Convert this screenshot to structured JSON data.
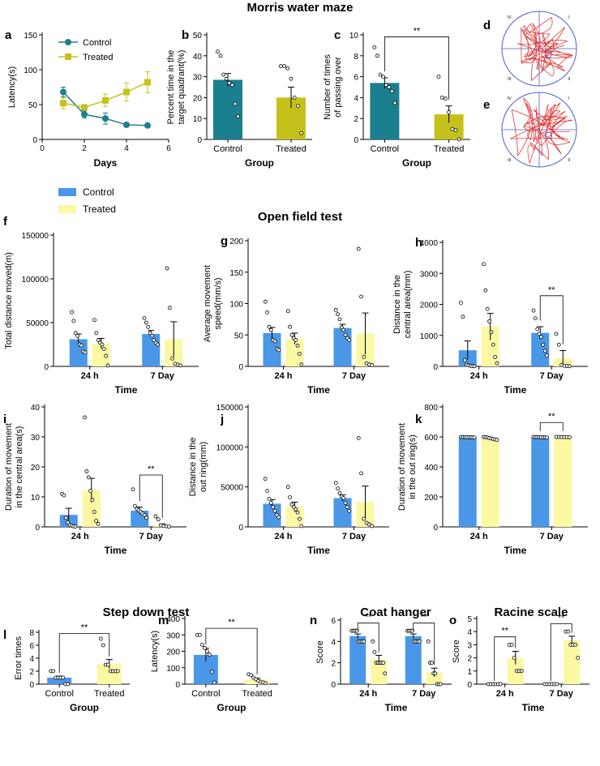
{
  "section_titles": {
    "mwm": "Morris water maze",
    "oft": "Open field test",
    "sdt": "Step down test",
    "coat": "Coat hanger",
    "racine": "Racine scale"
  },
  "legend": {
    "control": "Control",
    "treated": "Treated"
  },
  "colors": {
    "teal": "#1a7f8e",
    "olive": "#c4c21a",
    "blue": "#4a97e8",
    "yellow": "#fbf8a2",
    "track": "#e03a3a",
    "pool": "#4b5fc8"
  },
  "sig": "**",
  "tracks": {
    "d": {
      "label": "d",
      "quadrants": [
        "IV",
        "I",
        "III",
        "II"
      ]
    },
    "e": {
      "label": "e",
      "quadrants": [
        "IV",
        "I",
        "III",
        "II"
      ]
    }
  },
  "chart_data": [
    {
      "id": "a",
      "label": "a",
      "type": "line",
      "xlabel": "Days",
      "ylabel": "Latency(s)",
      "xlim": [
        0,
        6
      ],
      "ylim": [
        0,
        150
      ],
      "xticks": [
        0,
        2,
        4,
        6
      ],
      "yticks": [
        0,
        50,
        100,
        150
      ],
      "series": [
        {
          "name": "Control",
          "x": [
            1,
            2,
            3,
            4,
            5
          ],
          "values": [
            68,
            36,
            30,
            21,
            20
          ],
          "err": [
            7,
            5,
            8,
            3,
            3
          ]
        },
        {
          "name": "Treated",
          "x": [
            1,
            2,
            3,
            4,
            5
          ],
          "values": [
            52,
            46,
            56,
            68,
            82
          ],
          "err": [
            8,
            3,
            9,
            13,
            15
          ]
        }
      ]
    },
    {
      "id": "b",
      "label": "b",
      "type": "bar",
      "xlabel": "Group",
      "ylabel": [
        "Percent time in the",
        "target quadrant(%)"
      ],
      "ylim": [
        0,
        50
      ],
      "yticks": [
        0,
        10,
        20,
        30,
        40,
        50
      ],
      "categories": [
        "Control",
        "Treated"
      ],
      "values": [
        28.5,
        20
      ],
      "err": [
        3,
        5
      ],
      "points": [
        [
          42,
          40,
          31,
          29,
          27,
          26,
          17,
          11
        ],
        [
          35,
          35,
          34,
          29,
          20,
          16,
          3
        ]
      ]
    },
    {
      "id": "c",
      "label": "c",
      "type": "bar",
      "xlabel": "Group",
      "ylabel": [
        "Number of times",
        "of passing over"
      ],
      "ylim": [
        0,
        10
      ],
      "yticks": [
        0,
        2,
        4,
        6,
        8,
        10
      ],
      "categories": [
        "Control",
        "Treated"
      ],
      "values": [
        5.4,
        2.4
      ],
      "err": [
        0.5,
        0.8
      ],
      "points": [
        [
          8.8,
          8,
          6.2,
          6,
          5.2,
          5,
          4.6,
          3.5
        ],
        [
          6,
          4,
          3.9,
          2.6,
          1,
          0.9,
          0
        ]
      ],
      "sig": "**"
    },
    {
      "id": "f",
      "label": "f",
      "type": "bar",
      "xlabel": "Time",
      "ylabel": [
        "Total distance moved(m)"
      ],
      "ylim": [
        0,
        150000
      ],
      "yticks": [
        0,
        50000,
        100000,
        150000
      ],
      "categories": [
        "24 h",
        "7 Day"
      ],
      "series": [
        {
          "name": "Control",
          "values": [
            31000,
            37000
          ],
          "err": [
            6000,
            4000
          ],
          "points": [
            [
              62000,
              52000,
              38000,
              35000,
              25000,
              24000,
              17000,
              16000
            ],
            [
              55000,
              50000,
              45000,
              38000,
              35000,
              30000,
              27000,
              25000
            ]
          ]
        },
        {
          "name": "Treated",
          "values": [
            26000,
            31000
          ],
          "err": [
            6000,
            20000
          ],
          "points": [
            [
              53000,
              38000,
              30000,
              27000,
              25000,
              20000,
              12000,
              1000
            ],
            [
              112000,
              67000,
              9000,
              3000,
              2000,
              1000
            ]
          ]
        }
      ]
    },
    {
      "id": "g",
      "label": "g",
      "type": "bar",
      "xlabel": "Time",
      "ylabel": [
        "Average movement",
        "speed(mm/s)"
      ],
      "ylim": [
        0,
        200
      ],
      "yticks": [
        0,
        50,
        100,
        150,
        200
      ],
      "categories": [
        "24 h",
        "7 Day"
      ],
      "series": [
        {
          "name": "Control",
          "values": [
            53,
            61
          ],
          "err": [
            9,
            6
          ],
          "points": [
            [
              103,
              86,
              63,
              58,
              42,
              40,
              28,
              26
            ],
            [
              90,
              83,
              75,
              62,
              58,
              50,
              45,
              42
            ]
          ]
        },
        {
          "name": "Treated",
          "values": [
            44,
            52
          ],
          "err": [
            9,
            33
          ],
          "points": [
            [
              88,
              63,
              50,
              45,
              42,
              33,
              20,
              3
            ],
            [
              187,
              111,
              15,
              5,
              3,
              2
            ]
          ]
        }
      ]
    },
    {
      "id": "h",
      "label": "h",
      "type": "bar",
      "xlabel": "Time",
      "ylabel": [
        "Distance in the",
        "central area(mm)"
      ],
      "ylim": [
        0,
        4000
      ],
      "yticks": [
        0,
        1000,
        2000,
        3000,
        4000
      ],
      "categories": [
        "24 h",
        "7 Day"
      ],
      "series": [
        {
          "name": "Control",
          "values": [
            520,
            1080
          ],
          "err": [
            300,
            200
          ],
          "points": [
            [
              2050,
              1600,
              200,
              50,
              30,
              20,
              10,
              5
            ],
            [
              1800,
              1550,
              1200,
              1050,
              950,
              700,
              500,
              350
            ]
          ]
        },
        {
          "name": "Treated",
          "values": [
            1280,
            250
          ],
          "err": [
            430,
            260
          ],
          "points": [
            [
              3300,
              2450,
              1850,
              1450,
              1100,
              700,
              300,
              100
            ],
            [
              1050,
              700,
              50,
              20,
              10,
              5
            ]
          ]
        }
      ],
      "sig_group": 1
    },
    {
      "id": "i",
      "label": "i",
      "type": "bar",
      "xlabel": "Time",
      "ylabel": [
        "Duration of movement",
        "in the central area(s)"
      ],
      "ylim": [
        0,
        40
      ],
      "yticks": [
        0,
        10,
        20,
        30,
        40
      ],
      "categories": [
        "24 h",
        "7 Day"
      ],
      "series": [
        {
          "name": "Control",
          "values": [
            4,
            5.4
          ],
          "err": [
            2.2,
            1.2
          ],
          "points": [
            [
              11,
              10.5,
              3,
              1.5,
              0.6,
              0.4,
              0.2,
              0.1
            ],
            [
              12.5,
              7,
              6,
              5.5,
              5,
              4.5,
              4,
              3
            ]
          ]
        },
        {
          "name": "Treated",
          "values": [
            12.2,
            0.6
          ],
          "err": [
            4,
            0.4
          ],
          "points": [
            [
              36.5,
              18.5,
              16.5,
              12,
              9,
              5,
              2,
              1
            ],
            [
              3.5,
              2.5,
              0.5,
              0.3,
              0.2,
              0.1
            ]
          ]
        }
      ],
      "sig_group": 1
    },
    {
      "id": "j",
      "label": "j",
      "type": "bar",
      "xlabel": "Time",
      "ylabel": [
        "Distance in the",
        "out ring(mm)"
      ],
      "ylim": [
        0,
        150000
      ],
      "yticks": [
        0,
        50000,
        100000,
        150000
      ],
      "categories": [
        "24 h",
        "7 Day"
      ],
      "series": [
        {
          "name": "Control",
          "values": [
            29000,
            36000
          ],
          "err": [
            5000,
            4000
          ],
          "points": [
            [
              60000,
              45000,
              35000,
              30000,
              25000,
              20000,
              15000,
              12000
            ],
            [
              55000,
              48000,
              42000,
              38000,
              36000,
              30000,
              25000,
              20000
            ]
          ]
        },
        {
          "name": "Treated",
          "values": [
            25000,
            31000
          ],
          "err": [
            6000,
            20000
          ],
          "points": [
            [
              50000,
              37000,
              28000,
              25000,
              22000,
              18000,
              10000,
              1000
            ],
            [
              111000,
              67000,
              10000,
              5000,
              3000,
              1000
            ]
          ]
        }
      ]
    },
    {
      "id": "k",
      "label": "k",
      "type": "bar",
      "xlabel": "Time",
      "ylabel": [
        "Duration of movement",
        "in the out ring(s)"
      ],
      "ylim": [
        0,
        800
      ],
      "yticks": [
        0,
        200,
        400,
        600,
        800
      ],
      "categories": [
        "24 h",
        "7 Day"
      ],
      "series": [
        {
          "name": "Control",
          "values": [
            598,
            598
          ],
          "err": [
            1,
            1
          ],
          "points": [
            [
              600,
              599,
              599,
              598,
              598,
              597,
              597,
              596
            ],
            [
              600,
              599,
              599,
              598,
              598,
              597,
              597,
              596
            ]
          ]
        },
        {
          "name": "Treated",
          "values": [
            590,
            599
          ],
          "err": [
            3,
            1
          ],
          "points": [
            [
              600,
              598,
              596,
              592,
              590,
              586,
              583,
              580
            ],
            [
              600,
              600,
              599,
              599,
              598,
              598
            ]
          ]
        }
      ],
      "sig_group": 1
    },
    {
      "id": "l",
      "label": "l",
      "type": "bar",
      "xlabel": "Group",
      "ylabel": [
        "Error times"
      ],
      "ylim": [
        0,
        8
      ],
      "yticks": [
        0,
        2,
        4,
        6,
        8
      ],
      "categories": [
        "Control",
        "Treated"
      ],
      "values": [
        1,
        3.1
      ],
      "err": [
        0.25,
        0.7
      ],
      "points": [
        [
          2,
          2,
          1,
          1,
          1,
          1,
          0,
          0
        ],
        [
          7,
          6,
          3,
          3,
          2,
          2,
          2,
          2
        ]
      ],
      "sig": "**"
    },
    {
      "id": "m",
      "label": "m",
      "type": "bar",
      "xlabel": "Group",
      "ylabel": [
        "Latency(s)"
      ],
      "ylim": [
        0,
        400
      ],
      "yticks": [
        0,
        100,
        200,
        300,
        400
      ],
      "categories": [
        "Control",
        "Treated"
      ],
      "values": [
        178,
        28
      ],
      "err": [
        40,
        8
      ],
      "points": [
        [
          300,
          300,
          240,
          220,
          200,
          180,
          75,
          10
        ],
        [
          60,
          55,
          40,
          30,
          20,
          15,
          10,
          5
        ]
      ],
      "sig": "**"
    },
    {
      "id": "n",
      "label": "n",
      "type": "bar",
      "xlabel": "Time",
      "ylabel": [
        "Score"
      ],
      "ylim": [
        0,
        6
      ],
      "yticks": [
        0,
        2,
        4,
        6
      ],
      "categories": [
        "24 h",
        "7 Day"
      ],
      "series": [
        {
          "name": "Control",
          "values": [
            4.5,
            4.5
          ],
          "err": [
            0.2,
            0.2
          ],
          "points": [
            [
              5,
              5,
              5,
              5,
              4,
              4,
              4,
              4
            ],
            [
              5,
              5,
              5,
              5,
              4,
              4,
              4,
              4
            ]
          ]
        },
        {
          "name": "Treated",
          "values": [
            2.3,
            1.1
          ],
          "err": [
            0.4,
            0.4
          ],
          "points": [
            [
              4,
              3,
              2,
              2,
              2,
              2,
              2,
              1
            ],
            [
              4,
              2,
              2,
              1,
              1,
              0,
              0,
              0
            ]
          ]
        }
      ],
      "sig_both": true
    },
    {
      "id": "o",
      "label": "o",
      "type": "bar",
      "xlabel": "Time",
      "ylabel": [
        "Score"
      ],
      "ylim": [
        0,
        5
      ],
      "yticks": [
        0,
        1,
        2,
        3,
        4,
        5
      ],
      "categories": [
        "24 h",
        "7 Day"
      ],
      "series": [
        {
          "name": "Control",
          "values": [
            0,
            0
          ],
          "err": [
            0,
            0
          ],
          "points": [
            [
              0,
              0,
              0,
              0,
              0,
              0
            ],
            [
              0,
              0,
              0,
              0,
              0,
              0
            ]
          ]
        },
        {
          "name": "Treated",
          "values": [
            2,
            3.35
          ],
          "err": [
            0.5,
            0.3
          ],
          "points": [
            [
              3,
              3,
              2,
              1,
              1,
              1
            ],
            [
              4,
              4,
              3,
              3,
              3,
              2
            ]
          ]
        }
      ],
      "sig_both": true
    }
  ]
}
